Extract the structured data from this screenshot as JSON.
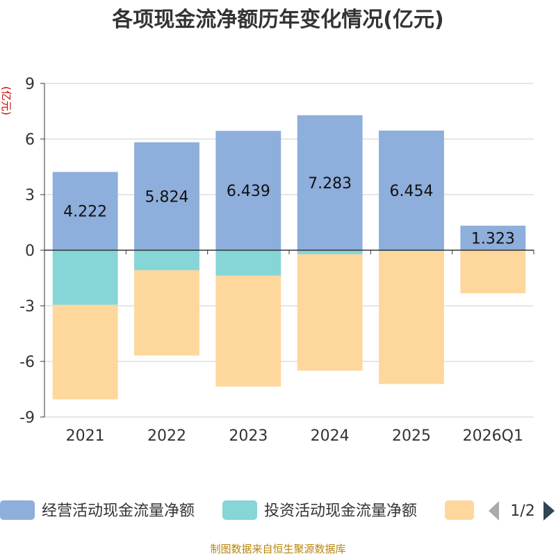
{
  "chart_data": {
    "type": "bar",
    "stacked": true,
    "title": "各项现金流净额历年变化情况(亿元)",
    "ylabel": "(亿元)",
    "xlabel": "",
    "ylim": [
      -9,
      9
    ],
    "yticks": [
      9,
      6,
      3,
      0,
      -3,
      -6,
      -9
    ],
    "grid": true,
    "categories": [
      "2021",
      "2022",
      "2023",
      "2024",
      "2025",
      "2026Q1"
    ],
    "series": [
      {
        "name": "经营活动现金流量净额",
        "color": "#8eaedb",
        "values": [
          4.222,
          5.824,
          6.439,
          7.283,
          6.454,
          1.323
        ],
        "show_labels": true
      },
      {
        "name": "投资活动现金流量净额",
        "color": "#86d5d7",
        "values": [
          -2.95,
          -1.08,
          -1.38,
          -0.22,
          -0.05,
          0
        ],
        "show_labels": false
      },
      {
        "name": "",
        "color": "#fdd79c",
        "values": [
          -5.1,
          -4.6,
          -5.98,
          -6.28,
          -7.17,
          -2.32
        ],
        "show_labels": false
      }
    ]
  },
  "legend": {
    "items": [
      "经营活动现金流量净额",
      "投资活动现金流量净额",
      ""
    ],
    "page": "1/2"
  },
  "source": "制图数据来自恒生聚源数据库"
}
